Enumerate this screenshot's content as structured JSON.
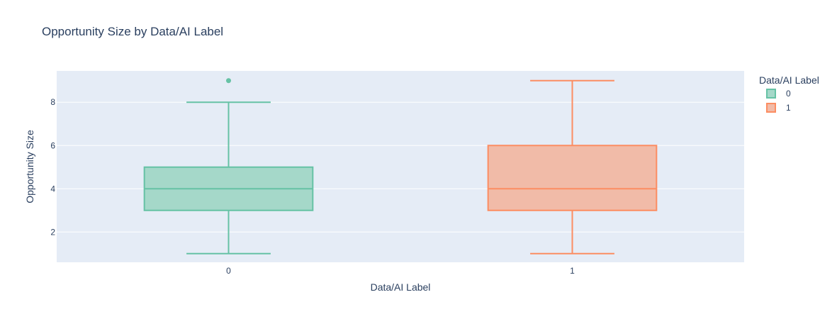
{
  "chart_data": {
    "type": "box",
    "title": "Opportunity Size by Data/AI Label",
    "xlabel": "Data/AI Label",
    "ylabel": "Opportunity Size",
    "categories": [
      "0",
      "1"
    ],
    "ylim": [
      0.6,
      9.45
    ],
    "yticks": [
      2,
      4,
      6,
      8
    ],
    "grid": true,
    "legend": {
      "title": "Data/AI Label",
      "placement": "top-right"
    },
    "series": [
      {
        "name": "0",
        "color": "#66c2a5",
        "fill": "#a5d8c9",
        "min": 1,
        "q1": 3,
        "median": 4,
        "q3": 5,
        "max": 8,
        "outliers": [
          9
        ]
      },
      {
        "name": "1",
        "color": "#fc8d62",
        "fill": "#f1bba8",
        "min": 1,
        "q1": 3,
        "median": 4,
        "q3": 6,
        "max": 9,
        "outliers": []
      }
    ]
  }
}
